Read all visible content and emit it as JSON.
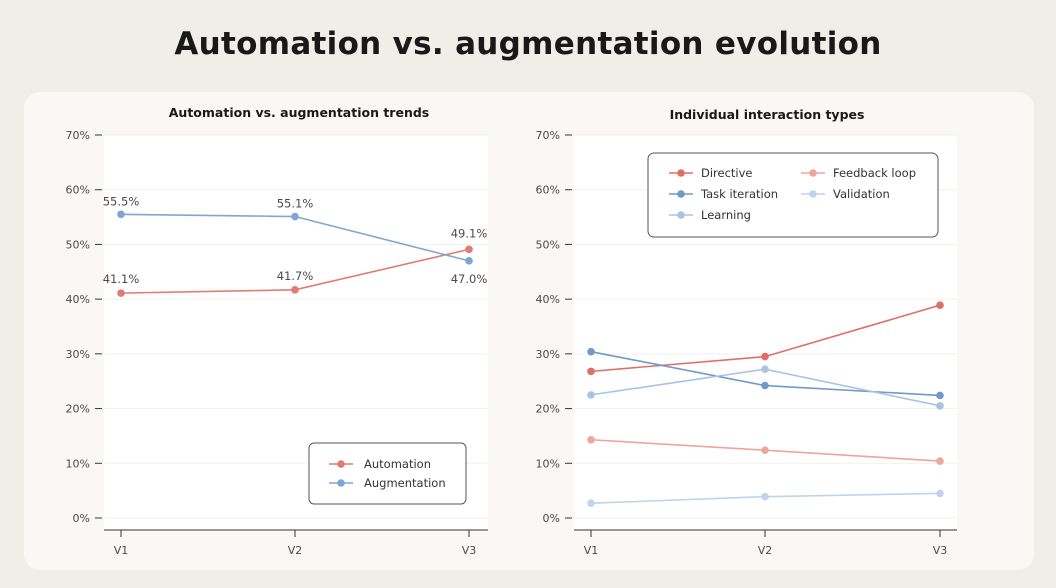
{
  "page": {
    "title": "Automation vs. augmentation evolution"
  },
  "colors": {
    "background": "#f0eee8",
    "panel": "#f9f8f5",
    "plot_bg": "#ffffff"
  },
  "chart_data": [
    {
      "type": "line",
      "title": "Automation vs. augmentation trends",
      "categories": [
        "V1",
        "V2",
        "V3"
      ],
      "yticks": [
        "0%",
        "10%",
        "20%",
        "30%",
        "40%",
        "50%",
        "60%",
        "70%"
      ],
      "ylim": [
        0,
        70
      ],
      "xlabel": "",
      "ylabel": "",
      "legend_position": "bottom-right",
      "series": [
        {
          "name": "Automation",
          "color": "#e07b72",
          "values": [
            41.1,
            41.7,
            49.1
          ],
          "labels": [
            "41.1%",
            "41.7%",
            "49.1%"
          ]
        },
        {
          "name": "Augmentation",
          "color": "#7fa6d3",
          "values": [
            55.5,
            55.1,
            47.0
          ],
          "labels": [
            "55.5%",
            "55.1%",
            "47.0%"
          ]
        }
      ]
    },
    {
      "type": "line",
      "title": "Individual interaction types",
      "categories": [
        "V1",
        "V2",
        "V3"
      ],
      "yticks": [
        "0%",
        "10%",
        "20%",
        "30%",
        "40%",
        "50%",
        "60%",
        "70%"
      ],
      "ylim": [
        0,
        70
      ],
      "xlabel": "",
      "ylabel": "",
      "legend_position": "top-center",
      "series": [
        {
          "name": "Directive",
          "color": "#df6f66",
          "values": [
            26.8,
            29.5,
            38.9
          ]
        },
        {
          "name": "Feedback loop",
          "color": "#eda59f",
          "values": [
            14.3,
            12.4,
            10.4
          ]
        },
        {
          "name": "Task iteration",
          "color": "#6f99c8",
          "values": [
            30.4,
            24.2,
            22.4
          ]
        },
        {
          "name": "Validation",
          "color": "#bfd4ea",
          "values": [
            2.7,
            3.9,
            4.5
          ]
        },
        {
          "name": "Learning",
          "color": "#a9c4e2",
          "values": [
            22.5,
            27.2,
            20.5
          ]
        }
      ]
    }
  ]
}
